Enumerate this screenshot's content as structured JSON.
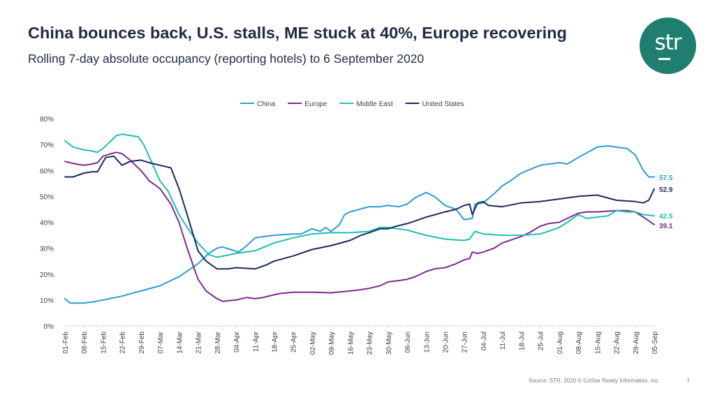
{
  "header": {
    "title": "China bounces back, U.S. stalls, ME stuck at 40%, Europe recovering",
    "subtitle": "Rolling 7-day absolute occupancy (reporting hotels) to 6 September 2020"
  },
  "logo": {
    "text": "str",
    "color": "#1f7e70"
  },
  "footer": {
    "source": "Source: STR. 2020 © CoStar Realty Information, Inc.",
    "page": "7"
  },
  "chart_data": {
    "type": "line",
    "title": "",
    "xlabel": "",
    "ylabel": "",
    "ylim": [
      0,
      80
    ],
    "y_ticks": [
      "0%",
      "10%",
      "20%",
      "30%",
      "40%",
      "50%",
      "60%",
      "70%",
      "80%"
    ],
    "x_range": [
      "2020-02-01",
      "2020-09-05"
    ],
    "x_ticks": [
      "01-Feb",
      "08-Feb",
      "15-Feb",
      "22-Feb",
      "29-Feb",
      "07-Mar",
      "14-Mar",
      "21-Mar",
      "28-Mar",
      "04-Apr",
      "11-Apr",
      "18-Apr",
      "25-Apr",
      "02-May",
      "09-May",
      "16-May",
      "23-May",
      "30-May",
      "06-Jun",
      "13-Jun",
      "20-Jun",
      "27-Jun",
      "04-Jul",
      "11-Jul",
      "18-Jul",
      "25-Jul",
      "01-Aug",
      "08-Aug",
      "15-Aug",
      "22-Aug",
      "29-Aug",
      "05-Sep"
    ],
    "grid": false,
    "legend_position": "top-center",
    "series": [
      {
        "name": "China",
        "color": "#2e9bd6",
        "end_label": "57.5",
        "points": [
          [
            "01-Feb",
            10.5
          ],
          [
            "03-Feb",
            8.8
          ],
          [
            "08-Feb",
            8.8
          ],
          [
            "11-Feb",
            9.2
          ],
          [
            "15-Feb",
            10.0
          ],
          [
            "22-Feb",
            11.5
          ],
          [
            "29-Feb",
            13.5
          ],
          [
            "07-Mar",
            15.5
          ],
          [
            "14-Mar",
            19.0
          ],
          [
            "21-Mar",
            24.0
          ],
          [
            "25-Mar",
            28.0
          ],
          [
            "28-Mar",
            30.0
          ],
          [
            "30-Mar",
            30.5
          ],
          [
            "02-Apr",
            29.5
          ],
          [
            "05-Apr",
            28.5
          ],
          [
            "08-Apr",
            31.0
          ],
          [
            "11-Apr",
            34.0
          ],
          [
            "18-Apr",
            35.0
          ],
          [
            "25-Apr",
            35.5
          ],
          [
            "28-Apr",
            35.5
          ],
          [
            "02-May",
            37.5
          ],
          [
            "05-May",
            36.5
          ],
          [
            "07-May",
            38.0
          ],
          [
            "09-May",
            36.5
          ],
          [
            "12-May",
            39.0
          ],
          [
            "14-May",
            43.0
          ],
          [
            "16-May",
            44.0
          ],
          [
            "23-May",
            46.0
          ],
          [
            "27-May",
            46.0
          ],
          [
            "30-May",
            46.5
          ],
          [
            "03-Jun",
            46.0
          ],
          [
            "06-Jun",
            47.0
          ],
          [
            "09-Jun",
            49.5
          ],
          [
            "13-Jun",
            51.5
          ],
          [
            "16-Jun",
            50.0
          ],
          [
            "20-Jun",
            46.5
          ],
          [
            "24-Jun",
            45.0
          ],
          [
            "27-Jun",
            41.0
          ],
          [
            "30-Jun",
            41.5
          ],
          [
            "01-Jul",
            47.0
          ],
          [
            "04-Jul",
            47.5
          ],
          [
            "08-Jul",
            51.0
          ],
          [
            "11-Jul",
            54.0
          ],
          [
            "14-Jul",
            56.0
          ],
          [
            "18-Jul",
            59.0
          ],
          [
            "25-Jul",
            62.0
          ],
          [
            "01-Aug",
            63.0
          ],
          [
            "04-Aug",
            62.5
          ],
          [
            "08-Aug",
            65.0
          ],
          [
            "15-Aug",
            69.0
          ],
          [
            "19-Aug",
            69.5
          ],
          [
            "22-Aug",
            69.0
          ],
          [
            "26-Aug",
            68.5
          ],
          [
            "29-Aug",
            66.0
          ],
          [
            "01-Sep",
            60.0
          ],
          [
            "03-Sep",
            57.5
          ],
          [
            "05-Sep",
            57.5
          ]
        ]
      },
      {
        "name": "Europe",
        "color": "#7b2a8e",
        "end_label": "39.1",
        "points": [
          [
            "01-Feb",
            63.5
          ],
          [
            "05-Feb",
            62.5
          ],
          [
            "08-Feb",
            62.0
          ],
          [
            "11-Feb",
            62.5
          ],
          [
            "13-Feb",
            63.0
          ],
          [
            "15-Feb",
            65.5
          ],
          [
            "18-Feb",
            66.5
          ],
          [
            "20-Feb",
            67.0
          ],
          [
            "22-Feb",
            66.5
          ],
          [
            "25-Feb",
            64.0
          ],
          [
            "29-Feb",
            60.0
          ],
          [
            "03-Mar",
            56.0
          ],
          [
            "07-Mar",
            53.0
          ],
          [
            "11-Mar",
            47.0
          ],
          [
            "14-Mar",
            40.0
          ],
          [
            "17-Mar",
            30.0
          ],
          [
            "21-Mar",
            18.0
          ],
          [
            "24-Mar",
            13.5
          ],
          [
            "28-Mar",
            10.5
          ],
          [
            "30-Mar",
            9.5
          ],
          [
            "04-Apr",
            10.0
          ],
          [
            "08-Apr",
            11.0
          ],
          [
            "11-Apr",
            10.5
          ],
          [
            "14-Apr",
            11.0
          ],
          [
            "18-Apr",
            12.0
          ],
          [
            "20-Apr",
            12.5
          ],
          [
            "25-Apr",
            13.0
          ],
          [
            "02-May",
            13.0
          ],
          [
            "09-May",
            12.8
          ],
          [
            "16-May",
            13.5
          ],
          [
            "20-May",
            14.0
          ],
          [
            "23-May",
            14.5
          ],
          [
            "27-May",
            15.5
          ],
          [
            "30-May",
            17.0
          ],
          [
            "03-Jun",
            17.5
          ],
          [
            "06-Jun",
            18.0
          ],
          [
            "09-Jun",
            19.0
          ],
          [
            "13-Jun",
            21.0
          ],
          [
            "16-Jun",
            22.0
          ],
          [
            "20-Jun",
            22.5
          ],
          [
            "24-Jun",
            24.0
          ],
          [
            "27-Jun",
            25.5
          ],
          [
            "29-Jun",
            26.0
          ],
          [
            "30-Jun",
            28.5
          ],
          [
            "02-Jul",
            28.0
          ],
          [
            "04-Jul",
            28.5
          ],
          [
            "08-Jul",
            30.0
          ],
          [
            "11-Jul",
            32.0
          ],
          [
            "18-Jul",
            34.5
          ],
          [
            "21-Jul",
            36.0
          ],
          [
            "25-Jul",
            38.5
          ],
          [
            "28-Jul",
            39.5
          ],
          [
            "01-Aug",
            40.0
          ],
          [
            "04-Aug",
            41.5
          ],
          [
            "08-Aug",
            43.5
          ],
          [
            "11-Aug",
            44.0
          ],
          [
            "15-Aug",
            44.0
          ],
          [
            "22-Aug",
            44.5
          ],
          [
            "26-Aug",
            44.5
          ],
          [
            "29-Aug",
            44.0
          ],
          [
            "01-Sep",
            42.0
          ],
          [
            "05-Sep",
            39.1
          ]
        ]
      },
      {
        "name": "Middle East",
        "color": "#1ebfb0",
        "end_label": "42.5",
        "points": [
          [
            "01-Feb",
            71.5
          ],
          [
            "04-Feb",
            69.0
          ],
          [
            "08-Feb",
            68.0
          ],
          [
            "11-Feb",
            67.5
          ],
          [
            "13-Feb",
            67.0
          ],
          [
            "15-Feb",
            68.5
          ],
          [
            "18-Feb",
            71.5
          ],
          [
            "20-Feb",
            73.5
          ],
          [
            "22-Feb",
            74.0
          ],
          [
            "25-Feb",
            73.5
          ],
          [
            "28-Feb",
            73.0
          ],
          [
            "01-Mar",
            70.0
          ],
          [
            "04-Mar",
            63.0
          ],
          [
            "07-Mar",
            56.0
          ],
          [
            "10-Mar",
            52.0
          ],
          [
            "14-Mar",
            43.0
          ],
          [
            "17-Mar",
            38.0
          ],
          [
            "21-Mar",
            32.0
          ],
          [
            "25-Mar",
            27.5
          ],
          [
            "28-Mar",
            26.5
          ],
          [
            "04-Apr",
            28.0
          ],
          [
            "11-Apr",
            29.0
          ],
          [
            "18-Apr",
            32.0
          ],
          [
            "25-Apr",
            34.0
          ],
          [
            "02-May",
            35.5
          ],
          [
            "09-May",
            36.0
          ],
          [
            "16-May",
            36.0
          ],
          [
            "23-May",
            36.5
          ],
          [
            "27-May",
            38.0
          ],
          [
            "30-May",
            38.0
          ],
          [
            "06-Jun",
            37.0
          ],
          [
            "13-Jun",
            35.0
          ],
          [
            "20-Jun",
            33.5
          ],
          [
            "27-Jun",
            33.0
          ],
          [
            "29-Jun",
            33.5
          ],
          [
            "01-Jul",
            36.5
          ],
          [
            "04-Jul",
            35.5
          ],
          [
            "11-Jul",
            35.0
          ],
          [
            "18-Jul",
            35.0
          ],
          [
            "25-Jul",
            35.5
          ],
          [
            "28-Jul",
            36.5
          ],
          [
            "01-Aug",
            38.0
          ],
          [
            "04-Aug",
            40.0
          ],
          [
            "08-Aug",
            43.0
          ],
          [
            "11-Aug",
            41.5
          ],
          [
            "15-Aug",
            42.0
          ],
          [
            "19-Aug",
            42.5
          ],
          [
            "22-Aug",
            44.5
          ],
          [
            "26-Aug",
            44.0
          ],
          [
            "29-Aug",
            44.0
          ],
          [
            "01-Sep",
            43.0
          ],
          [
            "05-Sep",
            42.5
          ]
        ]
      },
      {
        "name": "United States",
        "color": "#1b2b5b",
        "end_label": "52.9",
        "points": [
          [
            "01-Feb",
            57.5
          ],
          [
            "04-Feb",
            57.5
          ],
          [
            "08-Feb",
            59.0
          ],
          [
            "11-Feb",
            59.5
          ],
          [
            "13-Feb",
            59.5
          ],
          [
            "16-Feb",
            65.0
          ],
          [
            "19-Feb",
            65.5
          ],
          [
            "22-Feb",
            62.0
          ],
          [
            "25-Feb",
            63.5
          ],
          [
            "29-Feb",
            64.0
          ],
          [
            "03-Mar",
            63.0
          ],
          [
            "07-Mar",
            62.0
          ],
          [
            "11-Mar",
            61.0
          ],
          [
            "14-Mar",
            53.0
          ],
          [
            "17-Mar",
            43.0
          ],
          [
            "21-Mar",
            29.0
          ],
          [
            "24-Mar",
            25.0
          ],
          [
            "28-Mar",
            22.0
          ],
          [
            "01-Apr",
            22.0
          ],
          [
            "04-Apr",
            22.5
          ],
          [
            "11-Apr",
            22.0
          ],
          [
            "15-Apr",
            23.5
          ],
          [
            "18-Apr",
            25.0
          ],
          [
            "25-Apr",
            27.0
          ],
          [
            "02-May",
            29.5
          ],
          [
            "09-May",
            31.0
          ],
          [
            "16-May",
            33.0
          ],
          [
            "20-May",
            35.0
          ],
          [
            "23-May",
            36.0
          ],
          [
            "27-May",
            37.5
          ],
          [
            "30-May",
            37.5
          ],
          [
            "02-Jun",
            38.5
          ],
          [
            "06-Jun",
            39.5
          ],
          [
            "09-Jun",
            40.5
          ],
          [
            "13-Jun",
            42.0
          ],
          [
            "20-Jun",
            44.0
          ],
          [
            "24-Jun",
            45.0
          ],
          [
            "27-Jun",
            46.5
          ],
          [
            "29-Jun",
            47.0
          ],
          [
            "30-Jun",
            43.0
          ],
          [
            "02-Jul",
            47.5
          ],
          [
            "04-Jul",
            48.0
          ],
          [
            "06-Jul",
            46.5
          ],
          [
            "11-Jul",
            46.0
          ],
          [
            "18-Jul",
            47.5
          ],
          [
            "25-Jul",
            48.0
          ],
          [
            "01-Aug",
            49.0
          ],
          [
            "08-Aug",
            50.0
          ],
          [
            "15-Aug",
            50.5
          ],
          [
            "22-Aug",
            48.5
          ],
          [
            "29-Aug",
            48.0
          ],
          [
            "01-Sep",
            47.5
          ],
          [
            "03-Sep",
            48.5
          ],
          [
            "05-Sep",
            52.9
          ]
        ]
      }
    ]
  }
}
